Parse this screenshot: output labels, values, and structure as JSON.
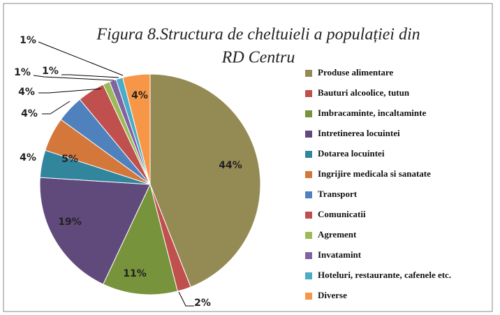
{
  "chart_data": {
    "type": "pie",
    "title": [
      "Figura 8.Structura de cheltuieli a populației din",
      "RD Centru"
    ],
    "categories": [
      "Produse alimentare",
      "Bauturi alcoolice, tutun",
      "Imbracaminte, incaltaminte",
      "Intretinerea locuintei",
      "Dotarea locuintei",
      "Ingrijire medicala si sanatate",
      "Transport",
      "Comunicatii",
      "Agrement",
      "Invatamint",
      "Hoteluri, restaurante, cafenele etc.",
      "Diverse"
    ],
    "values": [
      44,
      2,
      11,
      19,
      4,
      5,
      4,
      4,
      1,
      1,
      1,
      4
    ],
    "value_labels": [
      "44%",
      "2%",
      "11%",
      "19%",
      "4%",
      "5%",
      "4%",
      "4%",
      "1%",
      "1%",
      "1%",
      "4%"
    ],
    "colors": [
      "#948a54",
      "#c0504d",
      "#77933c",
      "#604a7b",
      "#31859c",
      "#d4773a",
      "#4f81bd",
      "#c0504d",
      "#9bbb59",
      "#8064a2",
      "#4bacc6",
      "#f79646"
    ],
    "legend": "right"
  }
}
